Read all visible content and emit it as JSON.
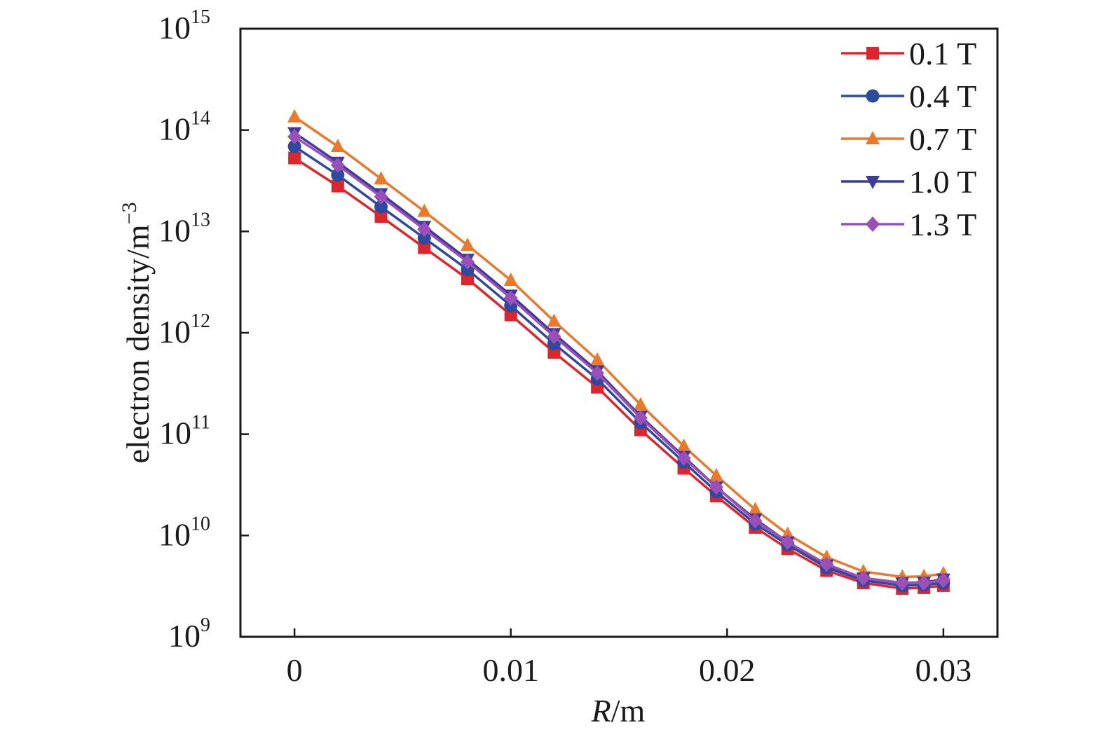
{
  "chart_data": {
    "type": "line",
    "xlabel_italic": "R",
    "xlabel_rest": "/m",
    "ylabel": "electron density/m",
    "ylabel_exp": "−3",
    "xlim": [
      -0.0025,
      0.0325
    ],
    "ylim": [
      1000000000.0,
      1000000000000000.0
    ],
    "y_scale": "log",
    "grid": false,
    "legend_position": "top-right",
    "x_ticks": [
      {
        "value": 0,
        "label": "0"
      },
      {
        "value": 0.01,
        "label": "0.01"
      },
      {
        "value": 0.02,
        "label": "0.02"
      },
      {
        "value": 0.03,
        "label": "0.03"
      }
    ],
    "y_ticks": [
      {
        "value": 1000000000.0,
        "base": "10",
        "exp": "9"
      },
      {
        "value": 10000000000.0,
        "base": "10",
        "exp": "10"
      },
      {
        "value": 100000000000.0,
        "base": "10",
        "exp": "11"
      },
      {
        "value": 1000000000000.0,
        "base": "10",
        "exp": "12"
      },
      {
        "value": 10000000000000.0,
        "base": "10",
        "exp": "13"
      },
      {
        "value": 100000000000000.0,
        "base": "10",
        "exp": "14"
      },
      {
        "value": 1000000000000000.0,
        "base": "10",
        "exp": "15"
      }
    ],
    "x": [
      0,
      0.002,
      0.004,
      0.006,
      0.008,
      0.01,
      0.012,
      0.014,
      0.016,
      0.018,
      0.0195,
      0.0213,
      0.0228,
      0.0246,
      0.0263,
      0.0281,
      0.0291,
      0.03
    ],
    "series": [
      {
        "name": "0.1 T",
        "color": "#e0242b",
        "marker": "square",
        "values": [
          53000000000000.0,
          28000000000000.0,
          14000000000000.0,
          6900000000000.0,
          3400000000000.0,
          1500000000000.0,
          640000000000.0,
          290000000000.0,
          110000000000.0,
          46000000000.0,
          24500000000.0,
          12000000000.0,
          7400000000.0,
          4500000000.0,
          3400000000.0,
          3000000000.0,
          3050000000.0,
          3200000000.0
        ]
      },
      {
        "name": "0.4 T",
        "color": "#2b4c9e",
        "marker": "circle",
        "values": [
          69000000000000.0,
          36000000000000.0,
          17500000000000.0,
          8600000000000.0,
          4200000000000.0,
          1850000000000.0,
          780000000000.0,
          350000000000.0,
          130000000000.0,
          53000000000.0,
          27000000000.0,
          13000000000.0,
          8100000000.0,
          4800000000.0,
          3600000000.0,
          3200000000.0,
          3250000000.0,
          3400000000.0
        ]
      },
      {
        "name": "0.7 T",
        "color": "#ea7a2a",
        "marker": "triangle-up",
        "values": [
          135000000000000.0,
          69000000000000.0,
          33000000000000.0,
          15800000000000.0,
          7300000000000.0,
          3300000000000.0,
          1300000000000.0,
          540000000000.0,
          195000000000.0,
          76000000000.0,
          39000000000.0,
          18000000000.0,
          10300000000.0,
          6100000000.0,
          4400000000.0,
          3900000000.0,
          3950000000.0,
          4200000000.0
        ]
      },
      {
        "name": "1.0 T",
        "color": "#3d3aa0",
        "marker": "triangle-down",
        "values": [
          94000000000000.0,
          48000000000000.0,
          23500000000000.0,
          11200000000000.0,
          5300000000000.0,
          2350000000000.0,
          980000000000.0,
          420000000000.0,
          150000000000.0,
          60000000000.0,
          30000000000.0,
          14500000000.0,
          8600000000.0,
          5100000000.0,
          3800000000.0,
          3400000000.0,
          3450000000.0,
          3700000000.0
        ]
      },
      {
        "name": "1.3 T",
        "color": "#9b4fb8",
        "marker": "diamond",
        "values": [
          86000000000000.0,
          45000000000000.0,
          22000000000000.0,
          10500000000000.0,
          5000000000000.0,
          2200000000000.0,
          920000000000.0,
          400000000000.0,
          145000000000.0,
          58000000000.0,
          30000000000.0,
          14000000000.0,
          8600000000.0,
          5200000000.0,
          3800000000.0,
          3400000000.0,
          3400000000.0,
          3600000000.0
        ]
      }
    ]
  }
}
